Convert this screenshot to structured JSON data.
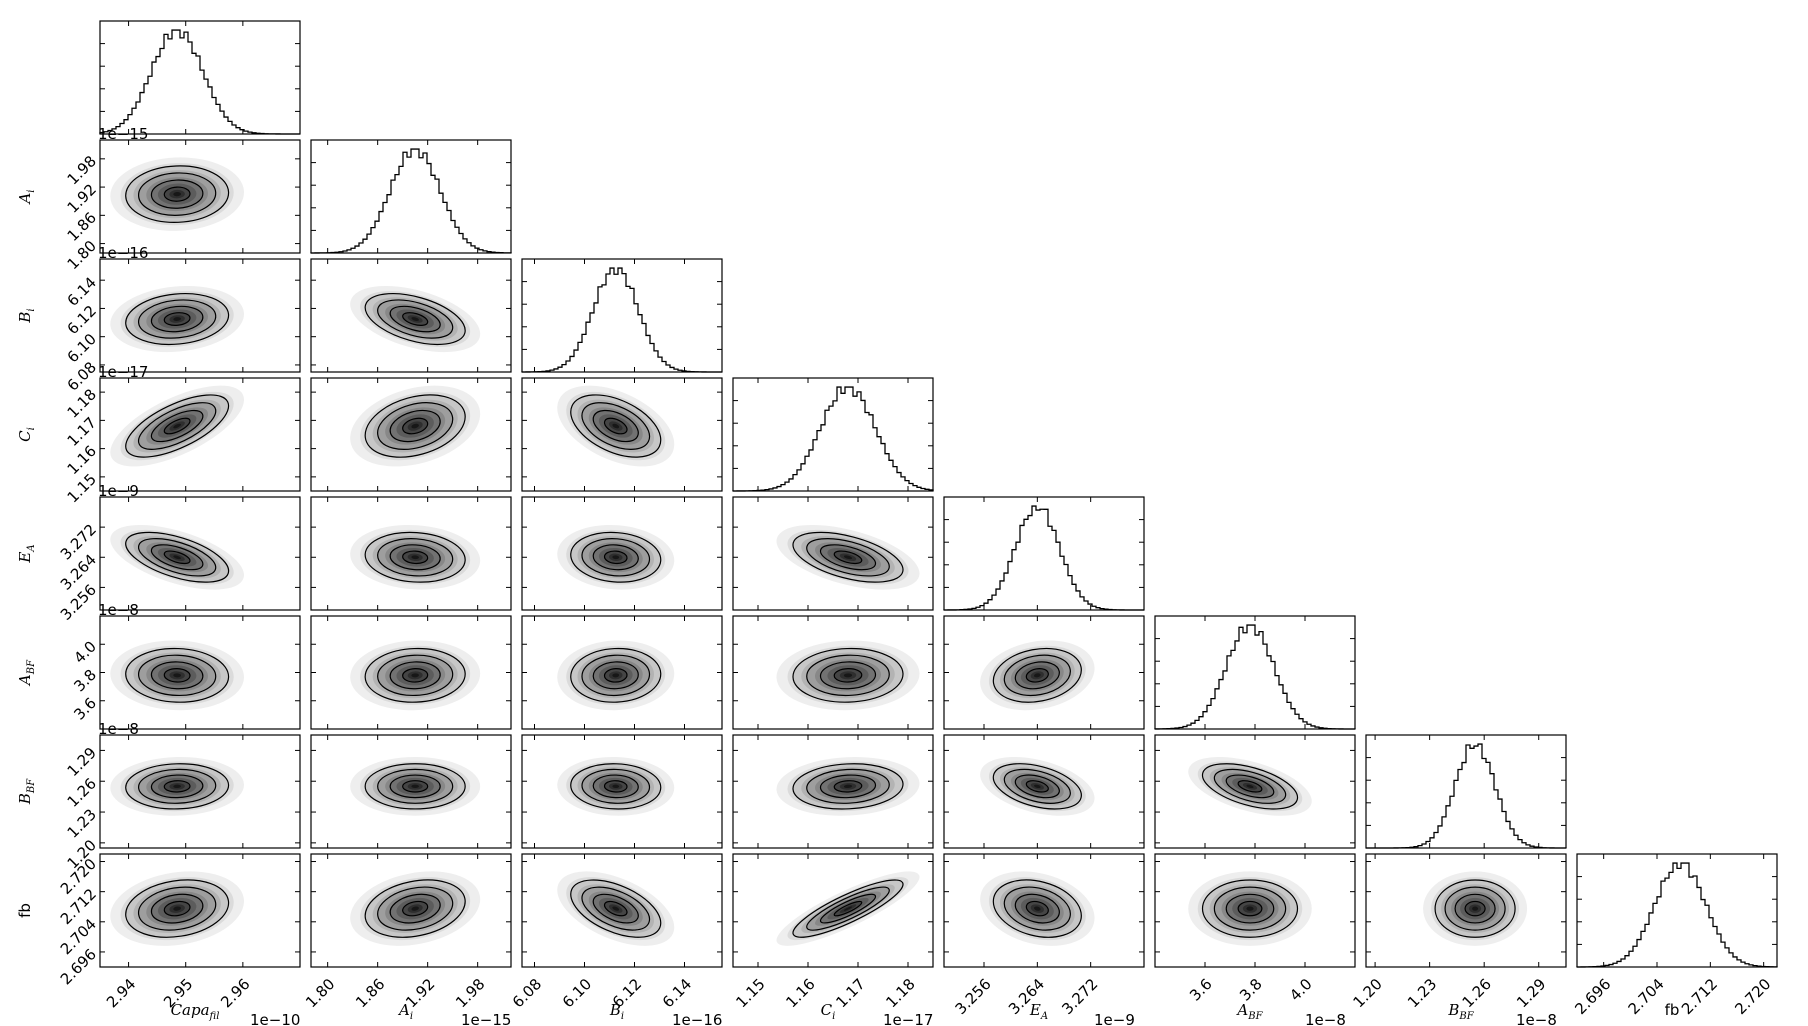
{
  "chart_data": {
    "type": "corner",
    "parameters": [
      {
        "key": "capa",
        "label": "Capa",
        "sub": "fil",
        "italic": true,
        "offset": "1e−10",
        "mean": 2.9485,
        "sd": 0.0045,
        "ticks": [
          2.94,
          2.95,
          2.96
        ],
        "tick_labels": [
          "2.94",
          "2.95",
          "2.96"
        ],
        "range": [
          2.935,
          2.97
        ]
      },
      {
        "key": "A_i",
        "label": "A",
        "sub": "i",
        "italic": true,
        "offset": "1e−15",
        "mean": 1.905,
        "sd": 0.03,
        "ticks": [
          1.8,
          1.86,
          1.92,
          1.98
        ],
        "tick_labels": [
          "1.80",
          "1.86",
          "1.92",
          "1.98"
        ],
        "range": [
          1.78,
          2.02
        ]
      },
      {
        "key": "B_i",
        "label": "B",
        "sub": "i",
        "italic": true,
        "offset": "1e−16",
        "mean": 6.1125,
        "sd": 0.009,
        "ticks": [
          6.08,
          6.1,
          6.12,
          6.14
        ],
        "tick_labels": [
          "6.08",
          "6.10",
          "6.12",
          "6.14"
        ],
        "range": [
          6.075,
          6.155
        ]
      },
      {
        "key": "C_i",
        "label": "C",
        "sub": "i",
        "italic": true,
        "offset": "1e−17",
        "mean": 1.168,
        "sd": 0.0055,
        "ticks": [
          1.15,
          1.16,
          1.17,
          1.18
        ],
        "tick_labels": [
          "1.15",
          "1.16",
          "1.17",
          "1.18"
        ],
        "range": [
          1.145,
          1.185
        ]
      },
      {
        "key": "E_A",
        "label": "E",
        "sub": "A",
        "italic": true,
        "offset": "1e−9",
        "mean": 3.264,
        "sd": 0.0033,
        "ticks": [
          3.256,
          3.264,
          3.272
        ],
        "tick_labels": [
          "3.256",
          "3.264",
          "3.272"
        ],
        "range": [
          3.25,
          3.28
        ]
      },
      {
        "key": "A_BF",
        "label": "A",
        "sub": "BF",
        "italic": true,
        "offset": "1e−8",
        "mean": 3.78,
        "sd": 0.095,
        "ticks": [
          3.6,
          3.8,
          4.0
        ],
        "tick_labels": [
          "3.6",
          "3.8",
          "4.0"
        ],
        "range": [
          3.4,
          4.2
        ]
      },
      {
        "key": "B_BF",
        "label": "B",
        "sub": "BF",
        "italic": true,
        "offset": "1e−8",
        "mean": 1.255,
        "sd": 0.011,
        "ticks": [
          1.2,
          1.23,
          1.26,
          1.29
        ],
        "tick_labels": [
          "1.20",
          "1.23",
          "1.26",
          "1.29"
        ],
        "range": [
          1.195,
          1.305
        ]
      },
      {
        "key": "fb",
        "label": "fb",
        "sub": "",
        "italic": false,
        "offset": "",
        "mean": 2.7075,
        "sd": 0.0038,
        "ticks": [
          2.696,
          2.704,
          2.712,
          2.72
        ],
        "tick_labels": [
          "2.696",
          "2.704",
          "2.712",
          "2.720"
        ],
        "range": [
          2.692,
          2.722
        ]
      }
    ],
    "correlations": {
      "1,0": 0.05,
      "2,0": 0.15,
      "2,1": -0.45,
      "3,0": 0.65,
      "3,1": 0.3,
      "3,2": -0.45,
      "4,0": -0.55,
      "4,1": -0.1,
      "4,2": -0.1,
      "4,3": -0.5,
      "5,0": -0.05,
      "5,1": 0.05,
      "5,2": 0.05,
      "5,3": 0.05,
      "5,4": 0.2,
      "6,0": 0.05,
      "6,1": 0.0,
      "6,2": -0.05,
      "6,3": 0.1,
      "6,4": -0.4,
      "6,5": -0.5,
      "7,0": 0.2,
      "7,1": 0.25,
      "7,2": -0.5,
      "7,3": 0.85,
      "7,4": -0.25,
      "7,5": 0.0,
      "7,6": 0.0
    },
    "contour_levels_sigma": [
      0.5,
      1.0,
      1.5,
      2.0
    ],
    "histogram": {
      "style": "step",
      "bins": 50
    },
    "grid": false,
    "colors": {
      "contour": "#000000",
      "density_dark": "#111111",
      "density_light": "#ffffff",
      "frame": "#000000"
    }
  }
}
